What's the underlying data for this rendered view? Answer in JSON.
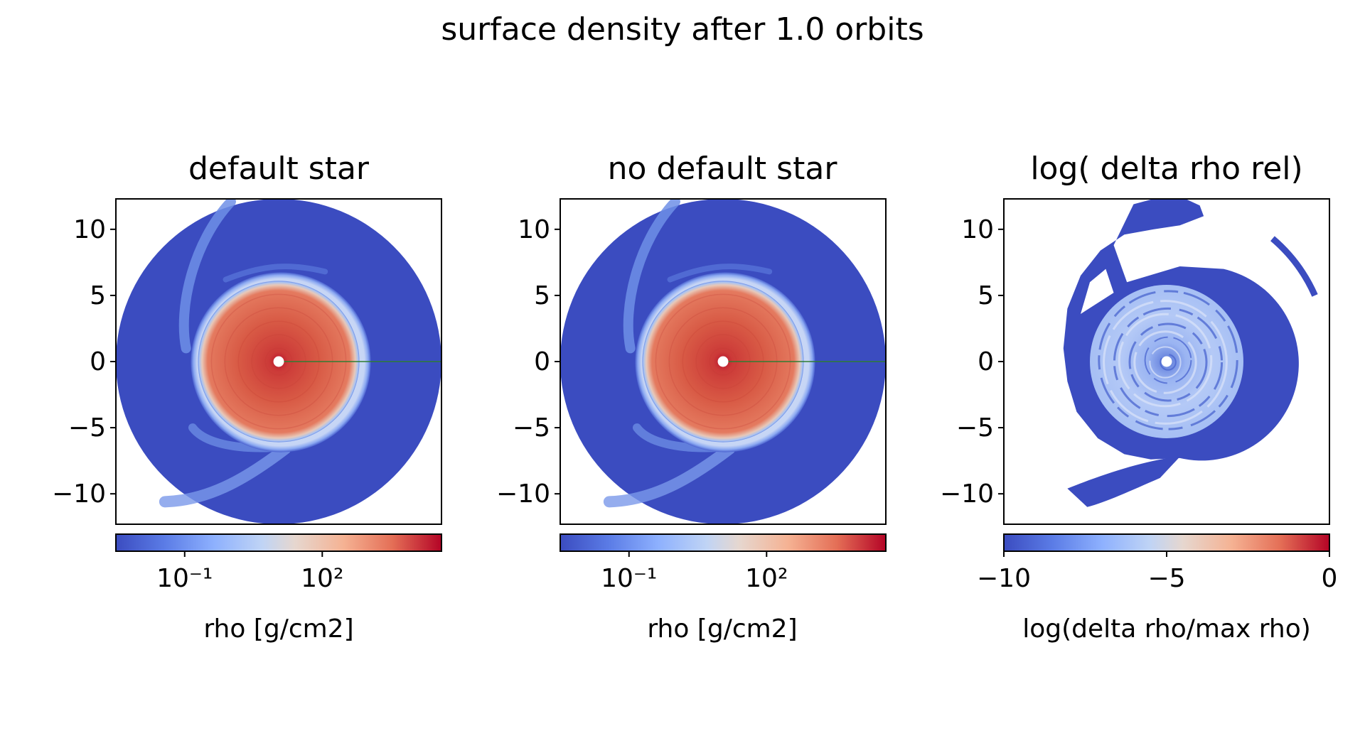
{
  "figure": {
    "suptitle": "surface density after 1.0 orbits"
  },
  "colors": {
    "cmap_low": "#3b4cc0",
    "cmap_mid": "#dddcdc",
    "cmap_high": "#b40426",
    "disk_low": "#3b4cc0",
    "disk_core": "#d65141",
    "planet_line": "#2e7d32"
  },
  "chart_data": [
    {
      "type": "heatmap",
      "title": "default star",
      "xlabel": "",
      "ylabel": "",
      "xlim": [
        -12.3,
        12.3
      ],
      "ylim": [
        -12.3,
        12.3
      ],
      "y_ticks": [
        10,
        5,
        0,
        -5,
        -10
      ],
      "y_tick_labels": [
        "10",
        "5",
        "0",
        "−5",
        "−10"
      ],
      "disk_outer_radius": 12.3,
      "disk_inner_radius": 0.4,
      "gap_radius": 6.1,
      "colorbar": {
        "label": "rho [g/cm2]",
        "scale": "log",
        "tick_labels": [
          "10⁻¹",
          "10²"
        ],
        "ticks_log10": [
          -1,
          2
        ]
      }
    },
    {
      "type": "heatmap",
      "title": "no default star",
      "xlabel": "",
      "ylabel": "",
      "xlim": [
        -12.3,
        12.3
      ],
      "ylim": [
        -12.3,
        12.3
      ],
      "y_ticks": [
        10,
        5,
        0,
        -5,
        -10
      ],
      "y_tick_labels": [
        "10",
        "5",
        "0",
        "−5",
        "−10"
      ],
      "disk_outer_radius": 12.3,
      "disk_inner_radius": 0.4,
      "gap_radius": 6.1,
      "colorbar": {
        "label": "rho [g/cm2]",
        "scale": "log",
        "tick_labels": [
          "10⁻¹",
          "10²"
        ],
        "ticks_log10": [
          -1,
          2
        ]
      }
    },
    {
      "type": "heatmap",
      "title": "log( delta rho rel)",
      "xlabel": "",
      "ylabel": "",
      "xlim": [
        -12.3,
        12.3
      ],
      "ylim": [
        -12.3,
        12.3
      ],
      "y_ticks": [
        10,
        5,
        0,
        -5,
        -10
      ],
      "y_tick_labels": [
        "10",
        "5",
        "0",
        "−5",
        "−10"
      ],
      "colorbar": {
        "label": "log(delta rho/max rho)",
        "scale": "linear",
        "range": [
          -10,
          0
        ],
        "tick_labels": [
          "−10",
          "−5",
          "0"
        ],
        "ticks": [
          -10,
          -5,
          0
        ]
      }
    }
  ]
}
